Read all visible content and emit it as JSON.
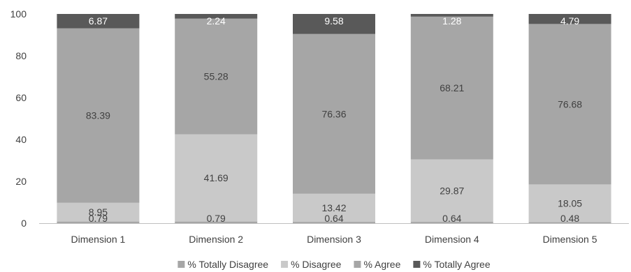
{
  "chart_data": {
    "type": "bar",
    "stacked": true,
    "title": "",
    "xlabel": "",
    "ylabel": "",
    "ylim": [
      0,
      100
    ],
    "yticks": [
      0,
      20,
      40,
      60,
      80,
      100
    ],
    "grid": false,
    "legend_position": "bottom",
    "categories": [
      "Dimension 1",
      "Dimension 2",
      "Dimension 3",
      "Dimension 4",
      "Dimension 5"
    ],
    "series": [
      {
        "name": "% Totally Disagree",
        "color": "#a6a6a6",
        "label_color": "#404040",
        "values": [
          0.79,
          0.79,
          0.64,
          0.64,
          0.48
        ]
      },
      {
        "name": "% Disagree",
        "color": "#c9c9c9",
        "label_color": "#404040",
        "values": [
          8.95,
          41.69,
          13.42,
          29.87,
          18.05
        ]
      },
      {
        "name": "% Agree",
        "color": "#a6a6a6",
        "label_color": "#404040",
        "values": [
          83.39,
          55.28,
          76.36,
          68.21,
          76.68
        ]
      },
      {
        "name": "% Totally Agree",
        "color": "#595959",
        "label_color": "#ffffff",
        "values": [
          6.87,
          2.24,
          9.58,
          1.28,
          4.79
        ]
      }
    ]
  }
}
